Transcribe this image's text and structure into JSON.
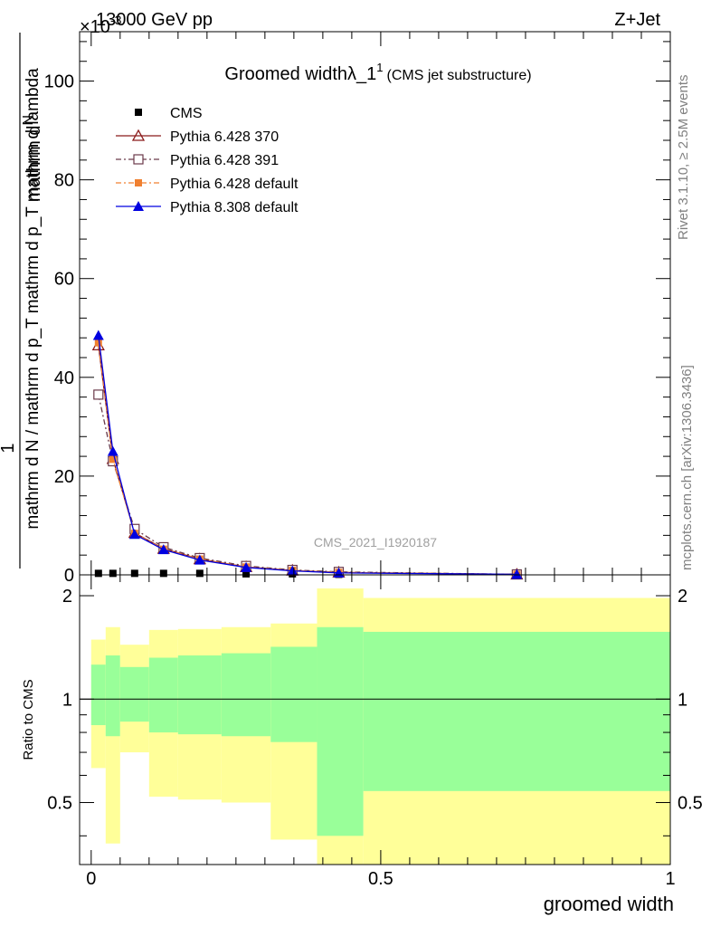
{
  "header": {
    "energy_label": "13000 GeV pp",
    "process_label": "Z+Jet",
    "exponent_label": "×10",
    "exponent_power": "-3"
  },
  "side_labels": {
    "rivet": "Rivet 3.1.10, ≥ 2.5M events",
    "mcplots": "mcplots.cern.ch [arXiv:1306.3436]"
  },
  "watermark": "CMS_2021_I1920187",
  "chart_data": [
    {
      "type": "line",
      "title": "Groomed width",
      "title_symbol": "λ_1",
      "title_superscript": "1",
      "subtitle": "(CMS jet substructure)",
      "ylabel_numerator": "mathrm d",
      "ylabel_numerator_N": "N",
      "ylabel_fraction_one": "1",
      "ylabel_denominator": "mathrm d N / mathrm d p_T mathrm d p_T mathrm d lambda",
      "ylim": [
        0,
        110
      ],
      "yticks": [
        0,
        20,
        40,
        60,
        80,
        100
      ],
      "xlim": [
        -0.02,
        1.0
      ],
      "legend_position": "top-left",
      "series": [
        {
          "name": "CMS",
          "color": "#000000",
          "marker": "square",
          "x": [
            0.0125,
            0.0375,
            0.075,
            0.125,
            0.1875,
            0.2675,
            0.3475,
            0.4275,
            0.735
          ],
          "values": [
            0.3,
            0.3,
            0.3,
            0.3,
            0.3,
            0.2,
            0.2,
            0.1,
            0.05
          ]
        },
        {
          "name": "Pythia 6.428 370",
          "color": "#8b1a1a",
          "marker": "triangle-open",
          "dash": "solid",
          "x": [
            0.0125,
            0.0375,
            0.075,
            0.125,
            0.1875,
            0.2675,
            0.3475,
            0.4275,
            0.735
          ],
          "values": [
            46.5,
            23.5,
            8.5,
            5.3,
            3.2,
            1.6,
            0.9,
            0.5,
            0.1
          ]
        },
        {
          "name": "Pythia 6.428 391",
          "color": "#6b3a4a",
          "marker": "square-open",
          "dash": "dashdot",
          "x": [
            0.0125,
            0.0375,
            0.075,
            0.125,
            0.1875,
            0.2675,
            0.3475,
            0.4275,
            0.735
          ],
          "values": [
            36.5,
            23.0,
            9.3,
            5.6,
            3.4,
            1.8,
            1.0,
            0.6,
            0.1
          ]
        },
        {
          "name": "Pythia 6.428 default",
          "color": "#f08030",
          "marker": "square-filled",
          "dash": "dashdot",
          "x": [
            0.0125,
            0.0375,
            0.075,
            0.125,
            0.1875,
            0.2675,
            0.3475,
            0.4275,
            0.735
          ],
          "values": [
            47.0,
            23.4,
            8.4,
            5.2,
            3.2,
            1.6,
            0.9,
            0.5,
            0.1
          ]
        },
        {
          "name": "Pythia 8.308 default",
          "color": "#0000e0",
          "marker": "triangle-filled",
          "dash": "solid",
          "x": [
            0.0125,
            0.0375,
            0.075,
            0.125,
            0.1875,
            0.2675,
            0.3475,
            0.4275,
            0.735
          ],
          "values": [
            48.5,
            25.0,
            8.2,
            5.1,
            3.0,
            1.5,
            0.8,
            0.4,
            0.1
          ]
        }
      ]
    },
    {
      "type": "area",
      "ylabel": "Ratio to CMS",
      "xlabel": "groomed width",
      "ylim": [
        0.33,
        2.3
      ],
      "yticks": [
        0.5,
        1,
        2
      ],
      "ytick_labels": [
        "0.5",
        "1",
        "2"
      ],
      "xticks": [
        0,
        0.5,
        1
      ],
      "xtick_labels": [
        "0",
        "0.5",
        "1"
      ],
      "reference_line": 1,
      "bands": [
        {
          "x0": 0.0,
          "x1": 0.025,
          "inner": [
            0.84,
            1.26
          ],
          "outer": [
            0.63,
            1.49
          ]
        },
        {
          "x0": 0.025,
          "x1": 0.05,
          "inner": [
            0.78,
            1.34
          ],
          "outer": [
            0.38,
            1.62
          ]
        },
        {
          "x0": 0.05,
          "x1": 0.1,
          "inner": [
            0.86,
            1.24
          ],
          "outer": [
            0.7,
            1.44
          ]
        },
        {
          "x0": 0.1,
          "x1": 0.15,
          "inner": [
            0.8,
            1.32
          ],
          "outer": [
            0.52,
            1.59
          ]
        },
        {
          "x0": 0.15,
          "x1": 0.225,
          "inner": [
            0.79,
            1.34
          ],
          "outer": [
            0.51,
            1.6
          ]
        },
        {
          "x0": 0.225,
          "x1": 0.31,
          "inner": [
            0.78,
            1.36
          ],
          "outer": [
            0.5,
            1.62
          ]
        },
        {
          "x0": 0.31,
          "x1": 0.39,
          "inner": [
            0.75,
            1.42
          ],
          "outer": [
            0.39,
            1.66
          ]
        },
        {
          "x0": 0.39,
          "x1": 0.47,
          "inner": [
            0.4,
            1.62
          ],
          "outer": [
            0.33,
            2.1
          ]
        },
        {
          "x0": 0.47,
          "x1": 1.0,
          "inner": [
            0.54,
            1.57
          ],
          "outer": [
            0.33,
            1.97
          ]
        }
      ]
    }
  ]
}
